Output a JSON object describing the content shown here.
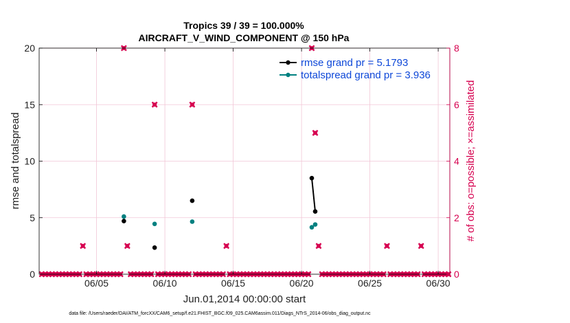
{
  "chart_data": {
    "type": "line",
    "title_line1": "Tropics 39 / 39 = 100.000%",
    "title_line2": "AIRCRAFT_V_WIND_COMPONENT @ 150 hPa",
    "xlabel": "Jun.01,2014 00:00:00 start",
    "ylabel_left": "rmse and totalspread",
    "ylabel_right": "# of obs: o=possible; ×=assimilated",
    "footnote": "data file: /Users/raeder/DAI/ATM_forcXX/CAM6_setup/f.e21.FHIST_BGC.f09_025.CAM6assim.011/Diags_NTrS_2014-06/obs_diag_output.nc",
    "xlim": [
      0.8,
      30.85
    ],
    "ylim_left": [
      0,
      20
    ],
    "ylim_right": [
      0,
      8
    ],
    "x_ticks": [
      5,
      10,
      15,
      20,
      25,
      30
    ],
    "x_tick_labels": [
      "06/05",
      "06/10",
      "06/15",
      "06/20",
      "06/25",
      "06/30"
    ],
    "y_left_ticks": [
      0,
      5,
      10,
      15,
      20
    ],
    "y_left_tick_labels": [
      "0",
      "5",
      "10",
      "15",
      "20"
    ],
    "y_right_ticks": [
      0,
      2,
      4,
      6,
      8
    ],
    "y_right_tick_labels": [
      "0",
      "2",
      "4",
      "6",
      "8"
    ],
    "grid": true,
    "colors": {
      "rmse": "#000000",
      "spread": "#008080",
      "obs": "#d6004f",
      "legend_text": "#0d47d8",
      "grid": "#f2c6d6"
    },
    "series": [
      {
        "name": "rmse grand pr = 5.1793",
        "axis": "left",
        "points": [
          [
            7.0,
            4.7
          ],
          [
            9.25,
            2.35
          ],
          [
            12.0,
            6.5
          ],
          [
            20.75,
            8.5
          ],
          [
            21.0,
            5.55
          ]
        ],
        "segments": [
          [
            [
              20.75,
              8.5
            ],
            [
              21.0,
              5.55
            ]
          ]
        ]
      },
      {
        "name": "totalspread grand pr = 3.936",
        "axis": "left",
        "points": [
          [
            7.0,
            5.1
          ],
          [
            9.25,
            4.45
          ],
          [
            12.0,
            4.65
          ],
          [
            20.75,
            4.15
          ],
          [
            21.0,
            4.4
          ]
        ],
        "segments": [
          [
            [
              20.75,
              4.15
            ],
            [
              21.0,
              4.4
            ]
          ]
        ]
      }
    ],
    "obs_count": {
      "axis": "right",
      "points": [
        [
          4.0,
          1
        ],
        [
          7.0,
          8
        ],
        [
          7.25,
          1
        ],
        [
          9.25,
          6
        ],
        [
          12.0,
          6
        ],
        [
          14.5,
          1
        ],
        [
          20.75,
          8
        ],
        [
          21.0,
          5
        ],
        [
          21.25,
          1
        ],
        [
          26.25,
          1
        ],
        [
          28.75,
          1
        ]
      ],
      "zero_x_start": 1.0,
      "zero_x_end": 30.75,
      "zero_x_step": 0.25
    }
  }
}
